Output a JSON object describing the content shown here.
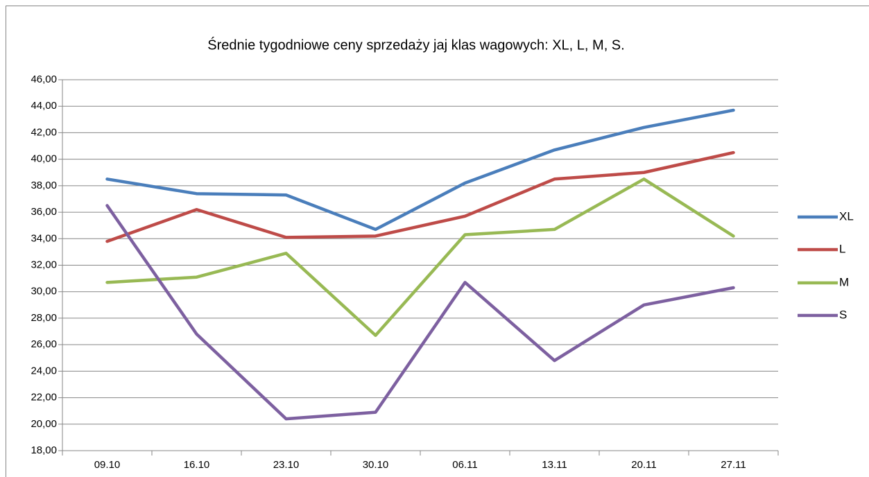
{
  "chart_data": {
    "type": "line",
    "title": "Średnie tygodniowe ceny sprzedaży jaj klas wagowych: XL, L, M, S.",
    "categories": [
      "09.10",
      "16.10",
      "23.10",
      "30.10",
      "06.11",
      "13.11",
      "20.11",
      "27.11"
    ],
    "series": [
      {
        "name": "XL",
        "color": "#4a7ebb",
        "values": [
          38.5,
          37.4,
          37.3,
          34.7,
          38.2,
          40.7,
          42.4,
          43.7
        ]
      },
      {
        "name": "L",
        "color": "#be4b48",
        "values": [
          33.8,
          36.2,
          34.1,
          34.2,
          35.7,
          38.5,
          39.0,
          40.5
        ]
      },
      {
        "name": "M",
        "color": "#98b954",
        "values": [
          30.7,
          31.1,
          32.9,
          26.7,
          34.3,
          34.7,
          38.5,
          34.2
        ]
      },
      {
        "name": "S",
        "color": "#7d60a0",
        "values": [
          36.5,
          26.8,
          20.4,
          20.9,
          30.7,
          24.8,
          29.0,
          30.3
        ]
      }
    ],
    "ylim": [
      18,
      46
    ],
    "yticks": [
      {
        "value": 18,
        "label": "18,00"
      },
      {
        "value": 20,
        "label": "20,00"
      },
      {
        "value": 22,
        "label": "22,00"
      },
      {
        "value": 24,
        "label": "24,00"
      },
      {
        "value": 26,
        "label": "26,00"
      },
      {
        "value": 28,
        "label": "28,00"
      },
      {
        "value": 30,
        "label": "30,00"
      },
      {
        "value": 32,
        "label": "32,00"
      },
      {
        "value": 34,
        "label": "34,00"
      },
      {
        "value": 36,
        "label": "36,00"
      },
      {
        "value": 38,
        "label": "38,00"
      },
      {
        "value": 40,
        "label": "40,00"
      },
      {
        "value": 42,
        "label": "42,00"
      },
      {
        "value": 44,
        "label": "44,00"
      },
      {
        "value": 46,
        "label": "46,00"
      }
    ],
    "grid": true,
    "legend": "right"
  }
}
